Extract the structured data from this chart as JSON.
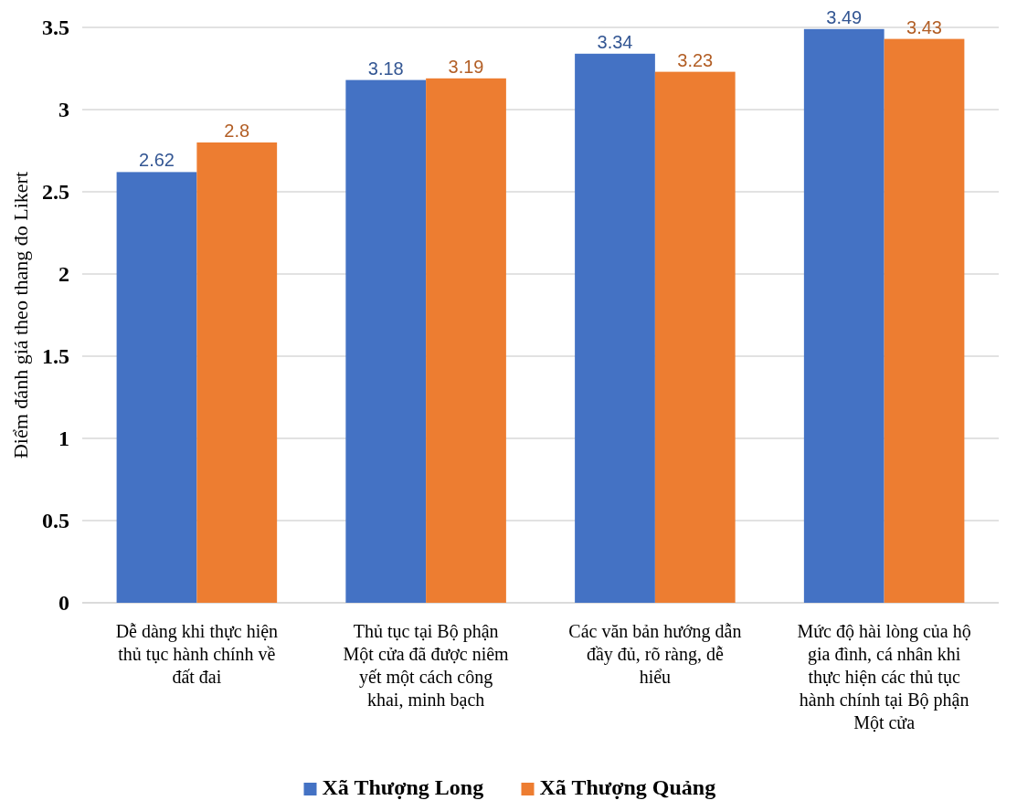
{
  "chart_data": {
    "type": "bar",
    "ylabel": "Điểm đánh giá theo thang đo Likert",
    "categories": [
      "Dễ dàng khi thực hiện thủ tục hành chính về đất đai",
      "Thủ tục tại Bộ phận Một cửa đã được niêm yết một cách công khai, minh bạch",
      "Các văn bản hướng dẫn đầy đủ, rõ ràng, dễ hiểu",
      "Mức độ hài lòng của hộ gia đình, cá nhân khi thực hiện các thủ tục hành chính tại Bộ phận Một cửa"
    ],
    "series": [
      {
        "name": "Xã Thượng Long",
        "color": "#4472c4",
        "values": [
          2.62,
          3.18,
          3.34,
          3.49
        ]
      },
      {
        "name": "Xã Thượng Quảng",
        "color": "#ed7d31",
        "values": [
          2.8,
          3.19,
          3.23,
          3.43
        ]
      }
    ],
    "ylim": [
      0,
      3.5
    ],
    "yticks": [
      0,
      0.5,
      1,
      1.5,
      2,
      2.5,
      3,
      3.5
    ],
    "grid": "y",
    "legend": "bottom",
    "data_labels": true
  }
}
